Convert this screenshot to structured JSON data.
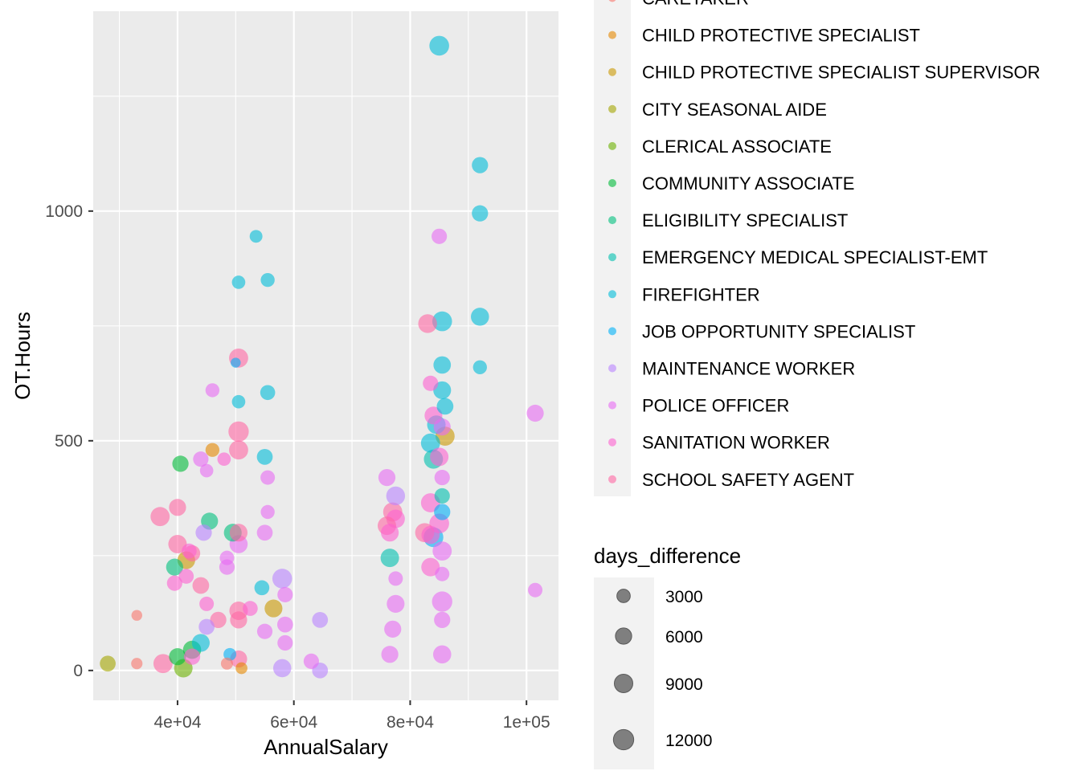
{
  "chart_data": {
    "type": "scatter",
    "title": "",
    "xlabel": "AnnualSalary",
    "ylabel": "OT.Hours",
    "xlim": [
      25500,
      105500
    ],
    "ylim": [
      -65,
      1435
    ],
    "x_ticks": [
      {
        "value": 40000,
        "label": "4e+04"
      },
      {
        "value": 60000,
        "label": "6e+04"
      },
      {
        "value": 80000,
        "label": "8e+04"
      },
      {
        "value": 100000,
        "label": "1e+05"
      }
    ],
    "y_ticks": [
      {
        "value": 0,
        "label": "0"
      },
      {
        "value": 500,
        "label": "500"
      },
      {
        "value": 1000,
        "label": "1000"
      }
    ],
    "grid": true,
    "colors": {
      "panel": "#EBEBEB",
      "grid": "#FFFFFF",
      "axis_text": "#4D4D4D",
      "size_key": "#7F7F7F"
    },
    "color_legend": {
      "title": "",
      "placement": "right",
      "items": [
        {
          "label": "CARETAKER",
          "color": "#F8766D"
        },
        {
          "label": "CHILD PROTECTIVE SPECIALIST",
          "color": "#E58700"
        },
        {
          "label": "CHILD PROTECTIVE SPECIALIST SUPERVISOR",
          "color": "#C99800"
        },
        {
          "label": "CITY SEASONAL AIDE",
          "color": "#A3A500"
        },
        {
          "label": "CLERICAL ASSOCIATE",
          "color": "#6BB100"
        },
        {
          "label": "COMMUNITY ASSOCIATE",
          "color": "#00BA38"
        },
        {
          "label": "ELIGIBILITY SPECIALIST",
          "color": "#00BF7D"
        },
        {
          "label": "EMERGENCY MEDICAL SPECIALIST-EMT",
          "color": "#00C0AF"
        },
        {
          "label": "FIREFIGHTER",
          "color": "#00BCD8"
        },
        {
          "label": "JOB OPPORTUNITY SPECIALIST",
          "color": "#00B0F6"
        },
        {
          "label": "MAINTENANCE WORKER",
          "color": "#B983FF"
        },
        {
          "label": "POLICE OFFICER",
          "color": "#E76BF3"
        },
        {
          "label": "SANITATION WORKER",
          "color": "#FD61D1"
        },
        {
          "label": "SCHOOL SAFETY AGENT",
          "color": "#FF67A4"
        }
      ]
    },
    "size_legend": {
      "title": "days_difference",
      "placement": "right",
      "items": [
        {
          "label": "3000",
          "value": 3000
        },
        {
          "label": "6000",
          "value": 6000
        },
        {
          "label": "9000",
          "value": 9000
        },
        {
          "label": "12000",
          "value": 12000
        }
      ]
    },
    "series": [
      {
        "name": "CARETAKER",
        "points": [
          {
            "x": 33000,
            "y": 120,
            "size": 1200
          },
          {
            "x": 33000,
            "y": 15,
            "size": 1500
          },
          {
            "x": 48500,
            "y": 15,
            "size": 2000
          }
        ]
      },
      {
        "name": "CHILD PROTECTIVE SPECIALIST",
        "points": [
          {
            "x": 51000,
            "y": 5,
            "size": 1800
          },
          {
            "x": 46000,
            "y": 480,
            "size": 3500
          }
        ]
      },
      {
        "name": "CHILD PROTECTIVE SPECIALIST SUPERVISOR",
        "points": [
          {
            "x": 86000,
            "y": 510,
            "size": 10000
          },
          {
            "x": 56500,
            "y": 135,
            "size": 8000
          },
          {
            "x": 41500,
            "y": 240,
            "size": 8000
          }
        ]
      },
      {
        "name": "CITY SEASONAL AIDE",
        "points": [
          {
            "x": 28000,
            "y": 15,
            "size": 5500
          }
        ]
      },
      {
        "name": "CLERICAL ASSOCIATE",
        "points": [
          {
            "x": 41000,
            "y": 5,
            "size": 9000
          }
        ]
      },
      {
        "name": "COMMUNITY ASSOCIATE",
        "points": [
          {
            "x": 40500,
            "y": 450,
            "size": 6000
          },
          {
            "x": 40000,
            "y": 30,
            "size": 7000
          },
          {
            "x": 42500,
            "y": 45,
            "size": 8500
          }
        ]
      },
      {
        "name": "ELIGIBILITY SPECIALIST",
        "points": [
          {
            "x": 39500,
            "y": 225,
            "size": 7000
          },
          {
            "x": 45500,
            "y": 325,
            "size": 7000
          },
          {
            "x": 49500,
            "y": 300,
            "size": 8000
          }
        ]
      },
      {
        "name": "EMERGENCY MEDICAL SPECIALIST-EMT",
        "points": [
          {
            "x": 76500,
            "y": 245,
            "size": 9000
          },
          {
            "x": 84000,
            "y": 460,
            "size": 10000
          },
          {
            "x": 85500,
            "y": 380,
            "size": 5000
          }
        ]
      },
      {
        "name": "FIREFIGHTER",
        "points": [
          {
            "x": 85000,
            "y": 1360,
            "size": 11000
          },
          {
            "x": 92000,
            "y": 1100,
            "size": 6000
          },
          {
            "x": 92000,
            "y": 995,
            "size": 6000
          },
          {
            "x": 92000,
            "y": 770,
            "size": 8500
          },
          {
            "x": 92000,
            "y": 660,
            "size": 3500
          },
          {
            "x": 85500,
            "y": 760,
            "size": 11000
          },
          {
            "x": 85500,
            "y": 665,
            "size": 7500
          },
          {
            "x": 85500,
            "y": 610,
            "size": 8000
          },
          {
            "x": 86000,
            "y": 575,
            "size": 6500
          },
          {
            "x": 84500,
            "y": 535,
            "size": 9000
          },
          {
            "x": 83500,
            "y": 495,
            "size": 10000
          },
          {
            "x": 53500,
            "y": 945,
            "size": 2500
          },
          {
            "x": 55500,
            "y": 850,
            "size": 3500
          },
          {
            "x": 50500,
            "y": 845,
            "size": 3000
          },
          {
            "x": 55500,
            "y": 605,
            "size": 4500
          },
          {
            "x": 50500,
            "y": 585,
            "size": 3000
          },
          {
            "x": 55000,
            "y": 465,
            "size": 5500
          },
          {
            "x": 54500,
            "y": 180,
            "size": 4500
          },
          {
            "x": 44000,
            "y": 60,
            "size": 8000
          }
        ]
      },
      {
        "name": "JOB OPPORTUNITY SPECIALIST",
        "points": [
          {
            "x": 85500,
            "y": 345,
            "size": 6000
          },
          {
            "x": 84000,
            "y": 290,
            "size": 11000
          },
          {
            "x": 49000,
            "y": 35,
            "size": 2500
          },
          {
            "x": 50000,
            "y": 670,
            "size": 800
          }
        ]
      },
      {
        "name": "MAINTENANCE WORKER",
        "points": [
          {
            "x": 58000,
            "y": 200,
            "size": 11000
          },
          {
            "x": 64500,
            "y": 110,
            "size": 5500
          },
          {
            "x": 58000,
            "y": 5,
            "size": 8500
          },
          {
            "x": 64500,
            "y": 0,
            "size": 5500
          },
          {
            "x": 77500,
            "y": 380,
            "size": 9500
          },
          {
            "x": 44500,
            "y": 300,
            "size": 6000
          },
          {
            "x": 45000,
            "y": 95,
            "size": 5500
          }
        ]
      },
      {
        "name": "POLICE OFFICER",
        "points": [
          {
            "x": 101500,
            "y": 560,
            "size": 7000
          },
          {
            "x": 101500,
            "y": 175,
            "size": 4000
          },
          {
            "x": 85000,
            "y": 945,
            "size": 5000
          },
          {
            "x": 85500,
            "y": 530,
            "size": 7000
          },
          {
            "x": 85500,
            "y": 420,
            "size": 5000
          },
          {
            "x": 76000,
            "y": 420,
            "size": 7000
          },
          {
            "x": 77500,
            "y": 200,
            "size": 4000
          },
          {
            "x": 77500,
            "y": 145,
            "size": 8000
          },
          {
            "x": 77000,
            "y": 90,
            "size": 7000
          },
          {
            "x": 76500,
            "y": 35,
            "size": 7000
          },
          {
            "x": 85500,
            "y": 210,
            "size": 4000
          },
          {
            "x": 85500,
            "y": 110,
            "size": 6000
          },
          {
            "x": 85500,
            "y": 35,
            "size": 8500
          },
          {
            "x": 85500,
            "y": 260,
            "size": 10000
          },
          {
            "x": 85500,
            "y": 150,
            "size": 12000
          },
          {
            "x": 46000,
            "y": 610,
            "size": 3500
          },
          {
            "x": 44000,
            "y": 460,
            "size": 5000
          },
          {
            "x": 45000,
            "y": 435,
            "size": 3000
          },
          {
            "x": 55500,
            "y": 420,
            "size": 4000
          },
          {
            "x": 55500,
            "y": 345,
            "size": 3500
          },
          {
            "x": 55000,
            "y": 300,
            "size": 5500
          },
          {
            "x": 48500,
            "y": 245,
            "size": 4000
          },
          {
            "x": 48500,
            "y": 225,
            "size": 5000
          },
          {
            "x": 55000,
            "y": 85,
            "size": 5000
          },
          {
            "x": 58500,
            "y": 60,
            "size": 5000
          },
          {
            "x": 58500,
            "y": 165,
            "size": 5000
          },
          {
            "x": 58500,
            "y": 100,
            "size": 5500
          },
          {
            "x": 63000,
            "y": 20,
            "size": 5000
          },
          {
            "x": 50500,
            "y": 275,
            "size": 8500
          }
        ]
      },
      {
        "name": "SANITATION WORKER",
        "points": [
          {
            "x": 83500,
            "y": 625,
            "size": 5000
          },
          {
            "x": 84000,
            "y": 555,
            "size": 8000
          },
          {
            "x": 85000,
            "y": 465,
            "size": 9000
          },
          {
            "x": 83500,
            "y": 365,
            "size": 10000
          },
          {
            "x": 85000,
            "y": 320,
            "size": 11000
          },
          {
            "x": 77500,
            "y": 330,
            "size": 9000
          },
          {
            "x": 83500,
            "y": 295,
            "size": 8500
          },
          {
            "x": 76500,
            "y": 300,
            "size": 8000
          },
          {
            "x": 83500,
            "y": 225,
            "size": 9000
          },
          {
            "x": 42000,
            "y": 260,
            "size": 4500
          },
          {
            "x": 39500,
            "y": 190,
            "size": 5000
          },
          {
            "x": 45000,
            "y": 145,
            "size": 4000
          },
          {
            "x": 41500,
            "y": 205,
            "size": 4500
          },
          {
            "x": 52500,
            "y": 135,
            "size": 4500
          },
          {
            "x": 48000,
            "y": 460,
            "size": 3000
          },
          {
            "x": 42500,
            "y": 30,
            "size": 6000
          }
        ]
      },
      {
        "name": "SCHOOL SAFETY AGENT",
        "points": [
          {
            "x": 50500,
            "y": 680,
            "size": 10000
          },
          {
            "x": 50500,
            "y": 520,
            "size": 12000
          },
          {
            "x": 50500,
            "y": 480,
            "size": 10000
          },
          {
            "x": 40000,
            "y": 355,
            "size": 7000
          },
          {
            "x": 37000,
            "y": 335,
            "size": 10000
          },
          {
            "x": 40000,
            "y": 275,
            "size": 9000
          },
          {
            "x": 42500,
            "y": 255,
            "size": 6000
          },
          {
            "x": 44000,
            "y": 185,
            "size": 6500
          },
          {
            "x": 50500,
            "y": 300,
            "size": 8000
          },
          {
            "x": 50500,
            "y": 130,
            "size": 9000
          },
          {
            "x": 50500,
            "y": 110,
            "size": 7000
          },
          {
            "x": 47000,
            "y": 110,
            "size": 6000
          },
          {
            "x": 37500,
            "y": 15,
            "size": 10000
          },
          {
            "x": 50500,
            "y": 25,
            "size": 7000
          },
          {
            "x": 83000,
            "y": 755,
            "size": 9500
          },
          {
            "x": 77000,
            "y": 345,
            "size": 10000
          },
          {
            "x": 76000,
            "y": 315,
            "size": 9000
          },
          {
            "x": 82500,
            "y": 300,
            "size": 10000
          }
        ]
      }
    ]
  }
}
